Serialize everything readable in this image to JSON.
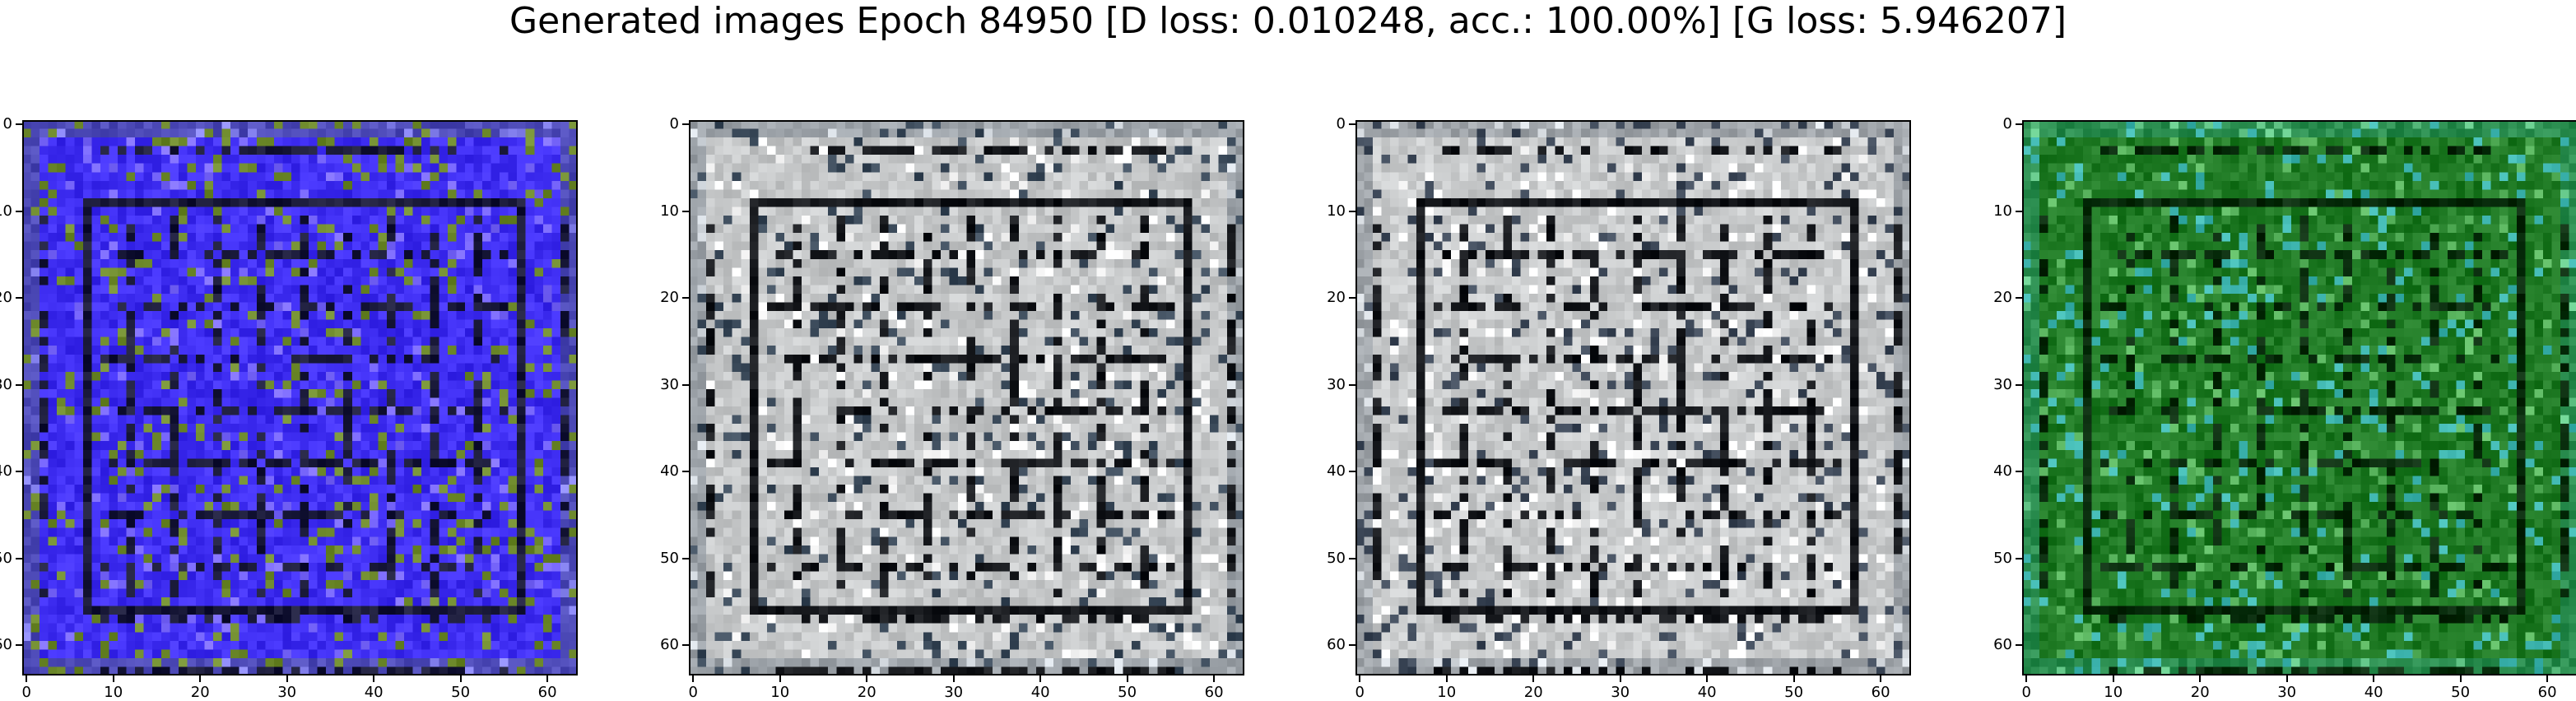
{
  "figure": {
    "title": "Generated images Epoch 84950 [D loss: 0.010248, acc.: 100.00%] [G loss: 5.946207]"
  },
  "panels": [
    {
      "name": "generated-image-1",
      "base_color": "#3f2ef2",
      "accent_color": "#6e8a2c",
      "dark_color": "#1a1a3a",
      "ticks": [
        "0",
        "10",
        "20",
        "30",
        "40",
        "50",
        "60"
      ]
    },
    {
      "name": "generated-image-2",
      "base_color": "#c6c8c9",
      "accent_color": "#3b4a5a",
      "dark_color": "#16181c",
      "ticks": [
        "0",
        "10",
        "20",
        "30",
        "40",
        "50",
        "60"
      ]
    },
    {
      "name": "generated-image-3",
      "base_color": "#c9cbcc",
      "accent_color": "#3d4858",
      "dark_color": "#15171b",
      "ticks": [
        "0",
        "10",
        "20",
        "30",
        "40",
        "50",
        "60"
      ]
    },
    {
      "name": "generated-image-4",
      "base_color": "#1f7a24",
      "accent_color": "#3fb6b0",
      "dark_color": "#062a0a",
      "ticks": [
        "0",
        "10",
        "20",
        "30",
        "40",
        "50",
        "60"
      ]
    }
  ]
}
